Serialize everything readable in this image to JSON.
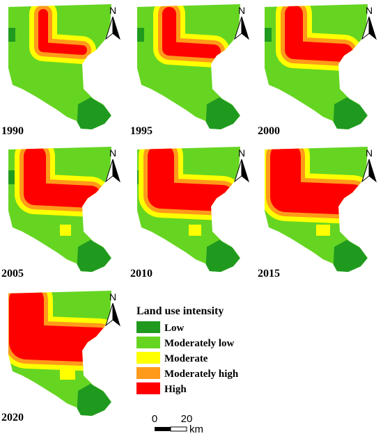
{
  "panels": [
    "1990",
    "1995",
    "2000",
    "2005",
    "2010",
    "2015",
    "2020"
  ],
  "north_label": "N",
  "legend": {
    "title": "Land use intensity",
    "items": [
      {
        "label": "Low",
        "color": "#1f9a1f"
      },
      {
        "label": "Moderately low",
        "color": "#66d522"
      },
      {
        "label": "Moderate",
        "color": "#ffff00"
      },
      {
        "label": "Moderately high",
        "color": "#ff9a1a"
      },
      {
        "label": "High",
        "color": "#ff0000"
      }
    ]
  },
  "scale_bar": {
    "labels": [
      "0",
      "20"
    ],
    "unit": "km"
  }
}
